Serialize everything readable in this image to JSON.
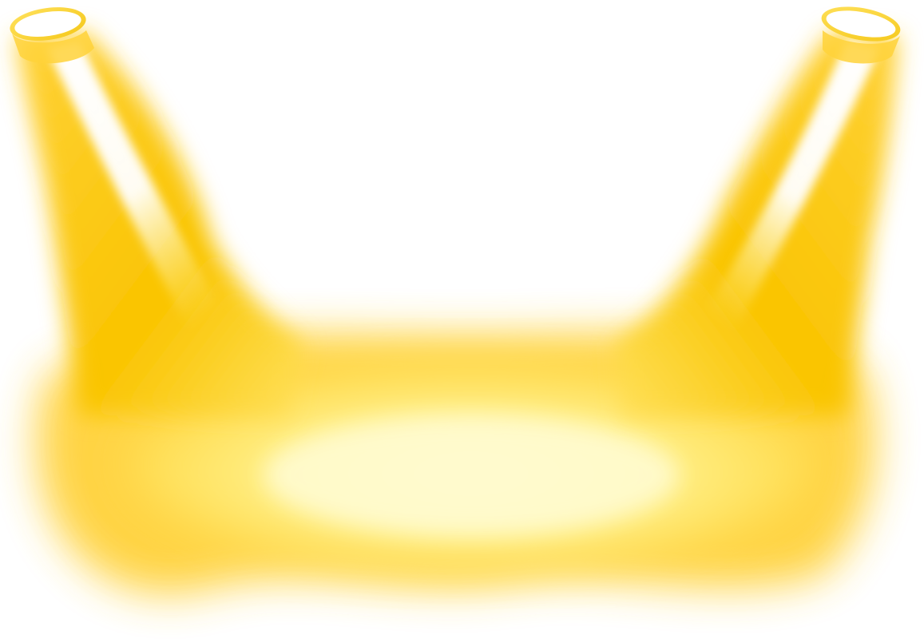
{
  "scene": {
    "subject": "twin-spotlights",
    "background_color": "#ffffff",
    "colors": {
      "deep_amber": "#f9c400",
      "gold": "#ffd23a",
      "warm_yellow": "#ffe15c",
      "pale_yellow": "#fff59a",
      "cream": "#fffbd0",
      "rim": "#f5c81a"
    }
  }
}
